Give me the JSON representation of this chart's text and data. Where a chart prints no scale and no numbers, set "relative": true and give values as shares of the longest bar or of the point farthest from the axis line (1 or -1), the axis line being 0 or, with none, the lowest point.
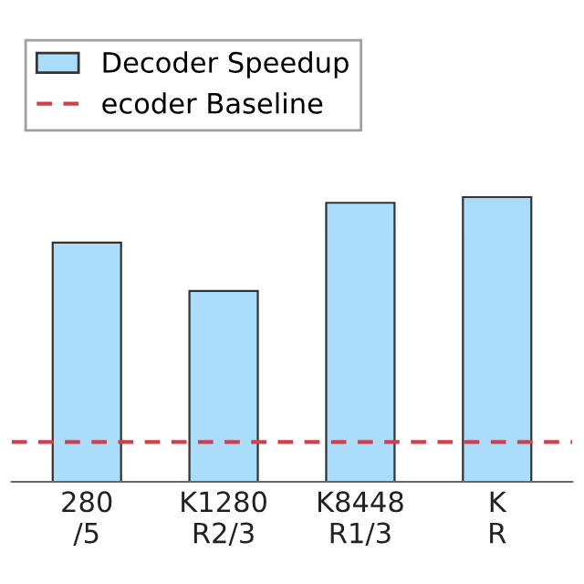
{
  "chart_data": {
    "type": "bar",
    "relative": true,
    "categories": [
      "280\n/5",
      "K1280\nR2/3",
      "K8448\nR1/3",
      "K\nR"
    ],
    "series": [
      {
        "name": "Decoder Speedup",
        "color": "#aadcfc",
        "values": [
          0.84,
          0.67,
          0.98,
          1.0
        ]
      }
    ],
    "ref_lines": [
      {
        "axis": "y",
        "value": 0.14,
        "label": "ecoder Baseline",
        "color": "#d0404a",
        "line_style": "dashed"
      }
    ],
    "legend": "top left",
    "grid": false
  }
}
